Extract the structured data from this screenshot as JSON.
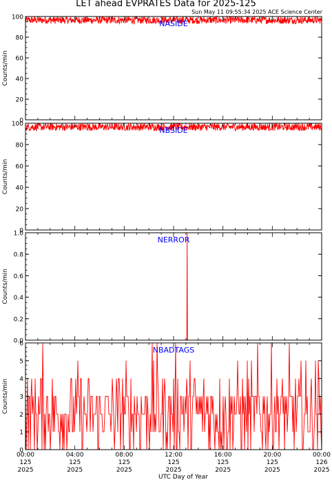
{
  "figure": {
    "title": "LET ahead EVPRATES Data for 2025-125",
    "timestamp": "Sun May 11 09:55:34 2025 ACE Science Center",
    "xlabel": "UTC Day of Year"
  },
  "colors": {
    "trace": "#ff0000",
    "label": "#0000ff",
    "axis": "#000000"
  },
  "x_ticks": [
    {
      "time": "00:00",
      "doy": "125",
      "year": "2025"
    },
    {
      "time": "04:00",
      "doy": "125",
      "year": "2025"
    },
    {
      "time": "08:00",
      "doy": "125",
      "year": "2025"
    },
    {
      "time": "12:00",
      "doy": "125",
      "year": "2025"
    },
    {
      "time": "16:00",
      "doy": "125",
      "year": "2025"
    },
    {
      "time": "20:00",
      "doy": "125",
      "year": "2025"
    },
    {
      "time": "00:00",
      "doy": "126",
      "year": "2025"
    }
  ],
  "chart_data": [
    {
      "type": "line",
      "series": [
        {
          "name": "NASIDE"
        }
      ],
      "ylabel": "Counts/min",
      "ylim": [
        0,
        100
      ],
      "yticks": [
        0,
        20,
        40,
        60,
        80,
        100
      ],
      "xlim_hours": [
        0,
        24
      ],
      "pattern": "noise",
      "baseline": 97,
      "noise_range": [
        93,
        100
      ]
    },
    {
      "type": "line",
      "series": [
        {
          "name": "NBSIDE"
        }
      ],
      "ylabel": "Counts/min",
      "ylim": [
        0,
        100
      ],
      "yticks": [
        0,
        20,
        40,
        60,
        80,
        100
      ],
      "xlim_hours": [
        0,
        24
      ],
      "pattern": "noise",
      "baseline": 97,
      "noise_range": [
        93,
        100
      ]
    },
    {
      "type": "line",
      "series": [
        {
          "name": "NERROR"
        }
      ],
      "ylabel": "Counts/min",
      "ylim": [
        0,
        1.0
      ],
      "yticks": [
        0.0,
        0.2,
        0.4,
        0.6,
        0.8,
        1.0
      ],
      "xlim_hours": [
        0,
        24
      ],
      "pattern": "spike",
      "baseline": 0,
      "spike": {
        "x_hours": 13.1,
        "y": 1.0
      }
    },
    {
      "type": "line",
      "series": [
        {
          "name": "NBADTAGS"
        }
      ],
      "ylabel": "Counts/min",
      "ylim": [
        0,
        6
      ],
      "yticks": [
        0,
        1,
        2,
        3,
        4,
        5,
        6
      ],
      "xlim_hours": [
        0,
        24
      ],
      "pattern": "discrete",
      "value_range": [
        0,
        6
      ]
    }
  ]
}
